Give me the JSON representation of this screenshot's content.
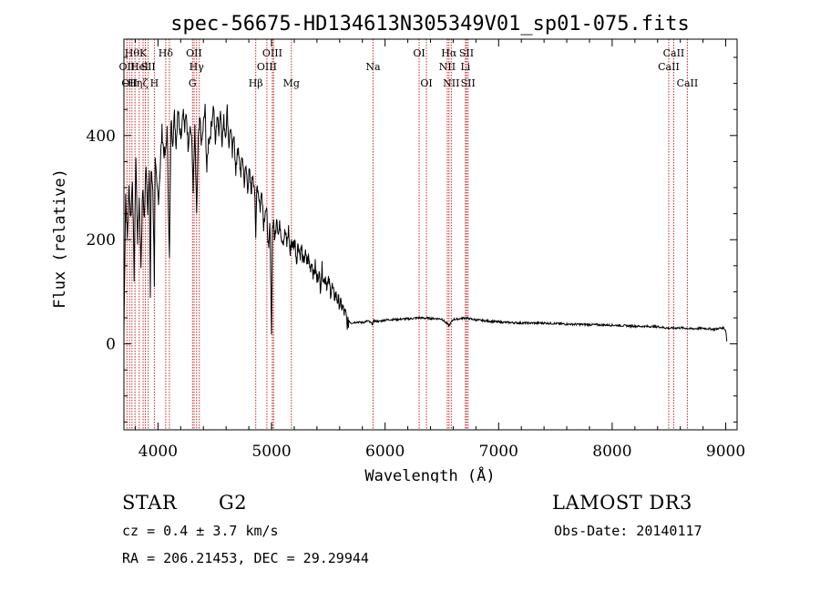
{
  "chart_data": {
    "type": "line",
    "title": "spec-56675-HD134613N305349V01_sp01-075.fits",
    "xlabel": "Wavelength (Å)",
    "ylabel": "Flux (relative)",
    "xlim": [
      3700,
      9100
    ],
    "ylim": [
      -165,
      585
    ],
    "xticks": [
      4000,
      5000,
      6000,
      7000,
      8000,
      9000
    ],
    "yticks": [
      0,
      200,
      400
    ],
    "grid": false,
    "line_color": "#000000",
    "marker_color": "#cc2222",
    "spectrum": {
      "x": [
        3700,
        3715,
        3730,
        3745,
        3760,
        3775,
        3790,
        3805,
        3820,
        3835,
        3850,
        3865,
        3880,
        3895,
        3910,
        3925,
        3933,
        3940,
        3955,
        3968,
        3975,
        3990,
        4005,
        4020,
        4035,
        4050,
        4065,
        4080,
        4101,
        4115,
        4130,
        4145,
        4160,
        4175,
        4190,
        4205,
        4220,
        4235,
        4250,
        4265,
        4280,
        4295,
        4310,
        4325,
        4340,
        4355,
        4370,
        4385,
        4400,
        4415,
        4430,
        4445,
        4460,
        4475,
        4490,
        4505,
        4520,
        4535,
        4550,
        4565,
        4580,
        4595,
        4610,
        4625,
        4640,
        4655,
        4670,
        4685,
        4700,
        4715,
        4730,
        4745,
        4760,
        4775,
        4790,
        4805,
        4820,
        4835,
        4850,
        4861,
        4870,
        4885,
        4900,
        4915,
        4930,
        4945,
        4960,
        4975,
        4985,
        4992,
        5000,
        5008,
        5015,
        5030,
        5045,
        5060,
        5075,
        5090,
        5105,
        5120,
        5135,
        5150,
        5165,
        5175,
        5190,
        5205,
        5220,
        5235,
        5250,
        5265,
        5280,
        5295,
        5310,
        5325,
        5340,
        5355,
        5370,
        5385,
        5400,
        5415,
        5430,
        5445,
        5460,
        5475,
        5490,
        5505,
        5520,
        5535,
        5550,
        5565,
        5580,
        5595,
        5610,
        5625,
        5640,
        5655,
        5670,
        5680,
        5700,
        5750,
        5800,
        5850,
        5890,
        5900,
        5950,
        6000,
        6100,
        6200,
        6300,
        6400,
        6500,
        6563,
        6600,
        6650,
        6700,
        6800,
        6900,
        7000,
        7200,
        7400,
        7600,
        7800,
        8000,
        8200,
        8400,
        8500,
        8600,
        8700,
        8800,
        8900,
        8950,
        8980,
        9000,
        9010
      ],
      "y": [
        20,
        290,
        200,
        300,
        240,
        320,
        130,
        360,
        200,
        280,
        150,
        300,
        240,
        350,
        260,
        320,
        90,
        330,
        300,
        120,
        350,
        300,
        280,
        340,
        410,
        370,
        360,
        410,
        160,
        430,
        390,
        440,
        380,
        455,
        420,
        400,
        455,
        410,
        445,
        380,
        420,
        400,
        300,
        410,
        240,
        390,
        430,
        380,
        420,
        450,
        330,
        390,
        400,
        430,
        460,
        380,
        440,
        410,
        450,
        390,
        430,
        400,
        450,
        380,
        420,
        360,
        410,
        320,
        380,
        350,
        330,
        360,
        310,
        340,
        300,
        330,
        290,
        330,
        300,
        200,
        310,
        290,
        260,
        300,
        230,
        260,
        245,
        170,
        230,
        150,
        15,
        220,
        235,
        200,
        250,
        210,
        230,
        205,
        200,
        215,
        190,
        220,
        170,
        200,
        185,
        200,
        160,
        195,
        170,
        185,
        150,
        175,
        155,
        165,
        145,
        160,
        130,
        150,
        120,
        140,
        110,
        145,
        120,
        130,
        110,
        120,
        100,
        110,
        90,
        95,
        85,
        80,
        75,
        70,
        60,
        55,
        35,
        45,
        40,
        42,
        41,
        44,
        38,
        44,
        43,
        46,
        47,
        48,
        50,
        49,
        48,
        35,
        47,
        48,
        50,
        46,
        44,
        42,
        40,
        40,
        38,
        37,
        36,
        34,
        33,
        30,
        31,
        29,
        30,
        28,
        30,
        31,
        26,
        5
      ],
      "noise": true
    },
    "line_markers": [
      {
        "wavelength": 3727,
        "label": "OII",
        "row": 2
      },
      {
        "wavelength": 3750,
        "label": "OII",
        "row": 3
      },
      {
        "wavelength": 3771,
        "label": "Hθ",
        "row": 1
      },
      {
        "wavelength": 3798,
        "label": "Hη",
        "row": 3
      },
      {
        "wavelength": 3835,
        "label": "Hel",
        "row": 2
      },
      {
        "wavelength": 3869,
        "label": "K",
        "row": 1
      },
      {
        "wavelength": 3889,
        "label": "ζ",
        "row": 3
      },
      {
        "wavelength": 3914,
        "label": "SII",
        "row": 2
      },
      {
        "wavelength": 3968,
        "label": "H",
        "row": 3
      },
      {
        "wavelength": 4068,
        "label": "Hδ",
        "row": 1
      },
      {
        "wavelength": 4101,
        "label": "",
        "row": 0
      },
      {
        "wavelength": 4304,
        "label": "G",
        "row": 3
      },
      {
        "wavelength": 4318,
        "label": "OII",
        "row": 1
      },
      {
        "wavelength": 4340,
        "label": "Hγ",
        "row": 2
      },
      {
        "wavelength": 4364,
        "label": "",
        "row": 0
      },
      {
        "wavelength": 4861,
        "label": "Hβ",
        "row": 3
      },
      {
        "wavelength": 4959,
        "label": "OIII",
        "row": 2
      },
      {
        "wavelength": 5007,
        "label": "OIII",
        "row": 1
      },
      {
        "wavelength": 5018,
        "label": "",
        "row": 0
      },
      {
        "wavelength": 5175,
        "label": "Mg",
        "row": 3
      },
      {
        "wavelength": 5894,
        "label": "Na",
        "row": 2
      },
      {
        "wavelength": 6300,
        "label": "OI",
        "row": 1
      },
      {
        "wavelength": 6364,
        "label": "OI",
        "row": 3
      },
      {
        "wavelength": 6548,
        "label": "NII",
        "row": 2
      },
      {
        "wavelength": 6563,
        "label": "Hα",
        "row": 1
      },
      {
        "wavelength": 6583,
        "label": "NII",
        "row": 3
      },
      {
        "wavelength": 6708,
        "label": "Li",
        "row": 2
      },
      {
        "wavelength": 6717,
        "label": "SII",
        "row": 1
      },
      {
        "wavelength": 6731,
        "label": "SII",
        "row": 3
      },
      {
        "wavelength": 8498,
        "label": "CaII",
        "row": 2
      },
      {
        "wavelength": 8542,
        "label": "CaII",
        "row": 1
      },
      {
        "wavelength": 8662,
        "label": "CaII",
        "row": 3
      }
    ]
  },
  "info": {
    "object_class": "STAR",
    "subclass": "G2",
    "survey": "LAMOST DR3",
    "redshift": "cz = 0.4 ± 3.7 km/s",
    "obs_date": "Obs-Date: 20140117",
    "coords": "RA = 206.21453, DEC =  29.29944"
  }
}
